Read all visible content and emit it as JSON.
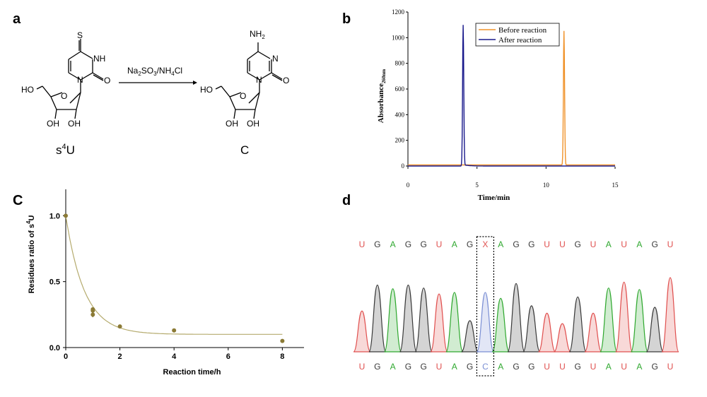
{
  "panels": {
    "a": "a",
    "b": "b",
    "c": "C",
    "d": "d"
  },
  "panel_a": {
    "reagent_prefix": "Na",
    "reagent_sub1": "2",
    "reagent_mid": "SO",
    "reagent_sub2": "3",
    "reagent_suffix": "/NH",
    "reagent_sub3": "4",
    "reagent_end": "Cl",
    "left_name": "s",
    "left_name_sup": "4",
    "left_name_end": "U",
    "right_name": "C",
    "atoms": {
      "S": "S",
      "NH": "NH",
      "O": "O",
      "N": "N",
      "HO": "HO",
      "OH": "OH",
      "NH2": "NH",
      "NH2_sub": "2"
    }
  },
  "chart_data": [
    {
      "panel": "b",
      "type": "line",
      "xlabel": "Time/min",
      "ylabel": "Absorbance",
      "ylabel_sub": "260nm",
      "xlim": [
        0,
        15
      ],
      "ylim": [
        0,
        1200
      ],
      "xticks": [
        "0",
        "5",
        "10",
        "15"
      ],
      "yticks": [
        "0",
        "200",
        "400",
        "600",
        "800",
        "1000",
        "1200"
      ],
      "legend_position": "top-right",
      "series": [
        {
          "name": "Before reaction",
          "color": "#f0932b",
          "peak_x": 11.3,
          "peak_y": 1045,
          "baseline": 8
        },
        {
          "name": "After reaction",
          "color": "#1a1a8c",
          "peak_x": 4.0,
          "peak_y": 1100,
          "baseline": 0
        }
      ]
    },
    {
      "panel": "c",
      "type": "scatter",
      "xlabel": "Reaction time/h",
      "ylabel_prefix": "Residues ratio of s",
      "ylabel_sup": "4",
      "ylabel_end": "U",
      "xlim": [
        0,
        8.8
      ],
      "ylim": [
        0,
        1.2
      ],
      "xticks": [
        "0",
        "2",
        "4",
        "6",
        "8"
      ],
      "yticks": [
        "0.0",
        "0.5",
        "1.0"
      ],
      "point_color": "#8b7a35",
      "fit_color": "#b5ab6e",
      "points": [
        {
          "x": 0,
          "y": 1.0
        },
        {
          "x": 1,
          "y": 0.28
        },
        {
          "x": 1,
          "y": 0.25
        },
        {
          "x": 1,
          "y": 0.29
        },
        {
          "x": 2,
          "y": 0.16
        },
        {
          "x": 4,
          "y": 0.13
        },
        {
          "x": 8,
          "y": 0.05
        }
      ],
      "fit": {
        "plateau": 0.1,
        "span": 0.9,
        "k": 1.45
      }
    }
  ],
  "panel_d": {
    "top_sequence": [
      "U",
      "G",
      "A",
      "G",
      "G",
      "U",
      "A",
      "G",
      "X",
      "A",
      "G",
      "G",
      "U",
      "U",
      "G",
      "U",
      "A",
      "U",
      "A",
      "G",
      "U"
    ],
    "bottom_sequence": [
      "U",
      "G",
      "A",
      "G",
      "G",
      "U",
      "A",
      "G",
      "C",
      "A",
      "G",
      "G",
      "U",
      "U",
      "G",
      "U",
      "A",
      "U",
      "A",
      "G",
      "U"
    ],
    "colors": {
      "U": "#e0504f",
      "G": "#3a3a3a",
      "A": "#2fa82f",
      "X": "#e0504f",
      "C": "#7b8fd4"
    },
    "peak_heights": [
      0.55,
      0.9,
      0.85,
      0.9,
      0.86,
      0.78,
      0.8,
      0.42,
      0.8,
      0.72,
      0.92,
      0.62,
      0.52,
      0.38,
      0.74,
      0.52,
      0.86,
      0.94,
      0.84,
      0.6,
      1.0
    ],
    "highlight_index": 8
  }
}
